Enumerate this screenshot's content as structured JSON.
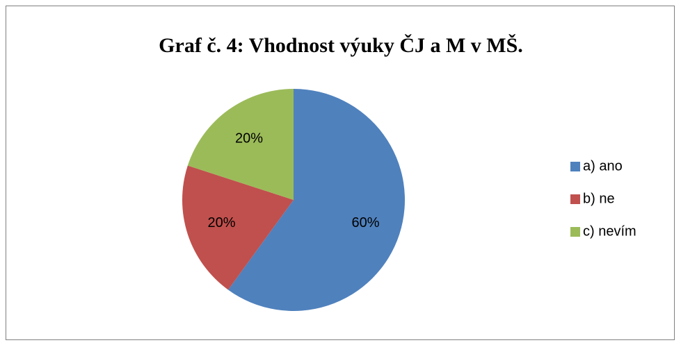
{
  "chart_data": {
    "type": "pie",
    "title": "Graf č. 4: Vhodnost výuky ČJ a M v MŠ.",
    "categories": [
      "a) ano",
      "b) ne",
      "c) nevím"
    ],
    "values": [
      60,
      20,
      20
    ],
    "value_labels": [
      "60%",
      "20%",
      "20%"
    ],
    "colors": [
      "#4f81bd",
      "#c0504d",
      "#9bbb59"
    ],
    "legend": "right"
  }
}
